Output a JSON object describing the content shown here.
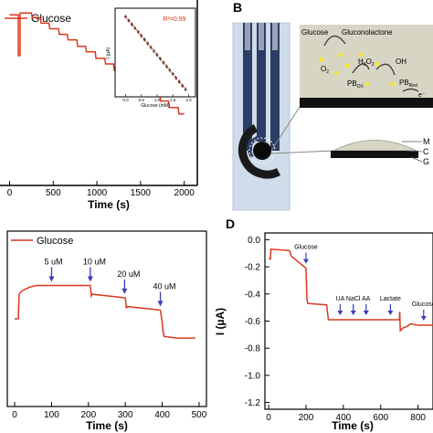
{
  "colors": {
    "trace": "#d9381e",
    "r2": "#d9381e",
    "arrow": "#3b3bb8",
    "device_bg": "#cfdcea",
    "electrode_dark": "#2c3e66",
    "electrode_light": "#9aa3b5",
    "membrane": "#d7d5c4",
    "base": "#111111"
  },
  "panel_labels": {
    "b": "B",
    "d": "D"
  },
  "chart_data": [
    {
      "id": "A",
      "type": "line",
      "legend": "Glucose",
      "xlabel": "Time (s)",
      "xticks": [
        0,
        500,
        1000,
        1500,
        2000
      ],
      "xlim": [
        -110,
        2150
      ],
      "ylim": [
        -1,
        1
      ],
      "x": [
        0,
        100,
        100,
        120,
        120,
        250,
        260,
        350,
        360,
        450,
        460,
        560,
        570,
        660,
        670,
        770,
        780,
        870,
        880,
        980,
        990,
        1090,
        1100,
        1190,
        1200,
        1300,
        1310,
        1400,
        1410,
        1510,
        1520,
        1610,
        1620,
        1720,
        1730,
        1820,
        1830,
        1930,
        1940,
        2000
      ],
      "y": [
        0.84,
        0.84,
        0.4,
        0.4,
        0.86,
        0.86,
        0.81,
        0.81,
        0.75,
        0.75,
        0.69,
        0.69,
        0.63,
        0.63,
        0.57,
        0.57,
        0.5,
        0.5,
        0.44,
        0.44,
        0.37,
        0.37,
        0.31,
        0.31,
        0.24,
        0.24,
        0.18,
        0.18,
        0.11,
        0.11,
        0.05,
        0.05,
        -0.02,
        -0.02,
        -0.09,
        -0.09,
        -0.16,
        -0.16,
        -0.23,
        -0.23
      ],
      "inset": {
        "type": "scatter",
        "annotation": "R²=0.99",
        "xlabel": "Glucose (mM)",
        "ylabel": "I (µA)",
        "xlim": [
          -0.1,
          2.1
        ],
        "xticks": [
          0.0,
          0.5,
          1.0,
          1.5,
          2.0
        ],
        "x": [
          0.0,
          0.1,
          0.2,
          0.3,
          0.4,
          0.5,
          0.6,
          0.7,
          0.8,
          0.9,
          1.0,
          1.1,
          1.2,
          1.3,
          1.4,
          1.5,
          1.6,
          1.7,
          1.8,
          1.9
        ],
        "y": [
          0.95,
          0.9,
          0.85,
          0.8,
          0.75,
          0.7,
          0.65,
          0.6,
          0.55,
          0.5,
          0.45,
          0.4,
          0.35,
          0.3,
          0.25,
          0.2,
          0.15,
          0.1,
          0.05,
          0.0
        ],
        "ylim": [
          -0.05,
          1.0
        ]
      }
    },
    {
      "id": "B",
      "type": "diagram",
      "labels": [
        "Glucose",
        "Gluconolactone",
        "O",
        "H",
        "O",
        "OH",
        "PB",
        "PB",
        "e⁻"
      ],
      "subscripts": {
        "o2": "2",
        "h2o2_2": "2",
        "h2o2_a": "2",
        "pbox": "OX",
        "pbred": "Red"
      },
      "side_labels": [
        "M",
        "C",
        "G"
      ]
    },
    {
      "id": "C",
      "type": "line",
      "legend": "Glucose",
      "xlabel": "Time (s)",
      "xticks": [
        0,
        100,
        200,
        300,
        400,
        500
      ],
      "xlim": [
        -20,
        520
      ],
      "ylim": [
        0,
        1
      ],
      "x": [
        0,
        10,
        12,
        20,
        40,
        60,
        100,
        150,
        205,
        208,
        210,
        300,
        303,
        305,
        395,
        400,
        402,
        405,
        440,
        490
      ],
      "y": [
        0.5,
        0.5,
        0.64,
        0.66,
        0.68,
        0.69,
        0.69,
        0.69,
        0.69,
        0.63,
        0.64,
        0.62,
        0.56,
        0.57,
        0.55,
        0.48,
        0.43,
        0.4,
        0.39,
        0.39
      ],
      "annotations": [
        {
          "label": "5 uM",
          "x": 100
        },
        {
          "label": "10 uM",
          "x": 205
        },
        {
          "label": "20 uM",
          "x": 298
        },
        {
          "label": "40 uM",
          "x": 395
        }
      ]
    },
    {
      "id": "D",
      "type": "line",
      "xlabel": "Time (s)",
      "ylabel": "I (µA)",
      "xticks": [
        0,
        200,
        400,
        600,
        800
      ],
      "yticks": [
        0.0,
        -0.2,
        -0.4,
        -0.6,
        -0.8,
        -1.0,
        -1.2
      ],
      "xlim": [
        -20,
        880
      ],
      "ylim": [
        -1.25,
        0.05
      ],
      "x": [
        0,
        10,
        12,
        110,
        115,
        120,
        200,
        205,
        210,
        310,
        320,
        330,
        700,
        702,
        705,
        720,
        740,
        760,
        800,
        840,
        880
      ],
      "y": [
        -0.14,
        -0.14,
        -0.07,
        -0.08,
        -0.09,
        -0.12,
        -0.21,
        -0.44,
        -0.47,
        -0.48,
        -0.59,
        -0.59,
        -0.59,
        -0.53,
        -0.67,
        -0.65,
        -0.64,
        -0.62,
        -0.63,
        -0.63,
        -0.63
      ],
      "annotations": [
        {
          "label": "Glucose",
          "x": 200
        },
        {
          "label": "UA",
          "x": 383
        },
        {
          "label": "NaCl",
          "x": 453
        },
        {
          "label": "AA",
          "x": 522
        },
        {
          "label": "Lactate",
          "x": 652
        },
        {
          "label": "Glucose",
          "x": 830
        }
      ]
    }
  ]
}
